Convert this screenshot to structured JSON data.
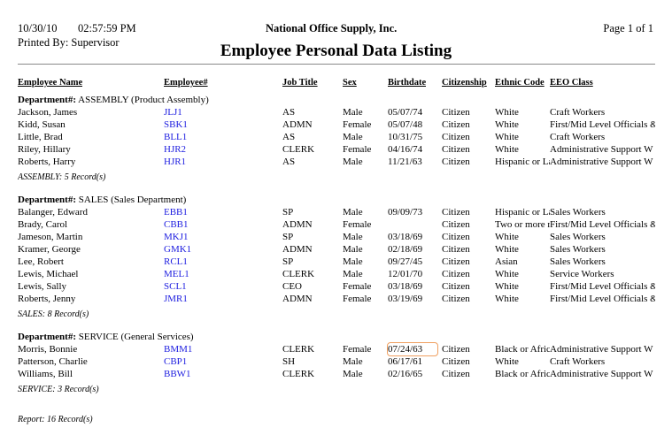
{
  "header": {
    "date": "10/30/10",
    "time": "02:57:59 PM",
    "printed_by": "Printed By: Supervisor",
    "company": "National Office Supply, Inc.",
    "page": "Page 1 of  1",
    "title": "Employee Personal Data Listing"
  },
  "columns": [
    "Employee Name",
    "Employee#",
    "Job Title",
    "Sex",
    "Birthdate",
    "Citizenship",
    "Ethnic Code",
    "EEO Class"
  ],
  "dept_label": "Department#:",
  "departments": [
    {
      "name": "ASSEMBLY (Product Assembly)",
      "summary": "ASSEMBLY: 5 Record(s)",
      "rows": [
        [
          "Jackson, James",
          "JLJ1",
          "AS",
          "Male",
          "05/07/74",
          "Citizen",
          "White",
          "Craft Workers"
        ],
        [
          "Kidd, Susan",
          "SBK1",
          "ADMN",
          "Female",
          "05/07/48",
          "Citizen",
          "White",
          "First/Mid Level Officials &"
        ],
        [
          "Little, Brad",
          "BLL1",
          "AS",
          "Male",
          "10/31/75",
          "Citizen",
          "White",
          "Craft Workers"
        ],
        [
          "Riley, Hillary",
          "HJR2",
          "CLERK",
          "Female",
          "04/16/74",
          "Citizen",
          "White",
          "Administrative Support W"
        ],
        [
          "Roberts, Harry",
          "HJR1",
          "AS",
          "Male",
          "11/21/63",
          "Citizen",
          "Hispanic or Latino",
          "Administrative Support W"
        ]
      ]
    },
    {
      "name": "SALES (Sales Department)",
      "summary": "SALES: 8 Record(s)",
      "rows": [
        [
          "Balanger, Edward",
          "EBB1",
          "SP",
          "Male",
          "09/09/73",
          "Citizen",
          "Hispanic or Latino",
          "Sales Workers"
        ],
        [
          "Brady, Carol",
          "CBB1",
          "ADMN",
          "Female",
          "",
          "Citizen",
          "Two or more races",
          "First/Mid Level Officials &"
        ],
        [
          "Jameson, Martin",
          "MKJ1",
          "SP",
          "Male",
          "03/18/69",
          "Citizen",
          "White",
          "Sales Workers"
        ],
        [
          "Kramer, George",
          "GMK1",
          "ADMN",
          "Male",
          "02/18/69",
          "Citizen",
          "White",
          "Sales Workers"
        ],
        [
          "Lee, Robert",
          "RCL1",
          "SP",
          "Male",
          "09/27/45",
          "Citizen",
          "Asian",
          "Sales Workers"
        ],
        [
          "Lewis, Michael",
          "MEL1",
          "CLERK",
          "Male",
          "12/01/70",
          "Citizen",
          "White",
          "Service Workers"
        ],
        [
          "Lewis, Sally",
          "SCL1",
          "CEO",
          "Female",
          "03/18/69",
          "Citizen",
          "White",
          "First/Mid Level Officials &"
        ],
        [
          "Roberts, Jenny",
          "JMR1",
          "ADMN",
          "Female",
          "03/19/69",
          "Citizen",
          "White",
          "First/Mid Level Officials &"
        ]
      ]
    },
    {
      "name": "SERVICE (General Services)",
      "summary": "SERVICE: 3 Record(s)",
      "rows": [
        [
          "Morris, Bonnie",
          "BMM1",
          "CLERK",
          "Female",
          "07/24/63",
          "Citizen",
          "Black or African American",
          "Administrative Support W"
        ],
        [
          "Patterson, Charlie",
          "CBP1",
          "SH",
          "Male",
          "06/17/61",
          "Citizen",
          "White",
          "Craft Workers"
        ],
        [
          "Williams, Bill",
          "BBW1",
          "CLERK",
          "Male",
          "02/16/65",
          "Citizen",
          "Black or African American",
          "Administrative Support W"
        ]
      ]
    }
  ],
  "report_summary": "Report: 16 Record(s)"
}
